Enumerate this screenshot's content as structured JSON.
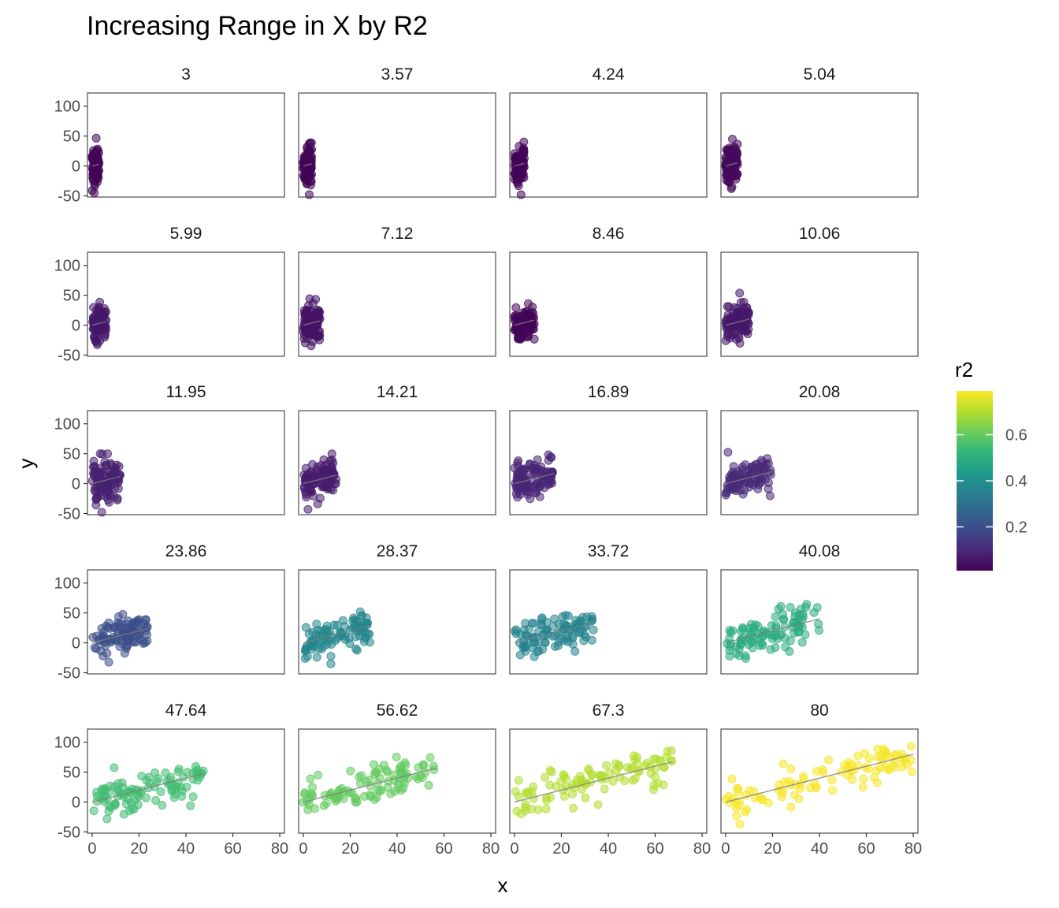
{
  "chart_data": {
    "type": "scatter",
    "title": "Increasing Range in X by R2",
    "xlabel": "x",
    "ylabel": "y",
    "xlim": [
      -2,
      82
    ],
    "ylim": [
      -52,
      122
    ],
    "x_ticks": [
      0,
      20,
      40,
      60,
      80
    ],
    "y_ticks": [
      -50,
      0,
      50,
      100
    ],
    "grid": false,
    "layout": "facet 5x4",
    "facets": [
      {
        "label": "3",
        "x_max": 3,
        "r2": 0.02
      },
      {
        "label": "3.57",
        "x_max": 3.57,
        "r2": 0.02
      },
      {
        "label": "4.24",
        "x_max": 4.24,
        "r2": 0.02
      },
      {
        "label": "5.04",
        "x_max": 5.04,
        "r2": 0.03
      },
      {
        "label": "5.99",
        "x_max": 5.99,
        "r2": 0.06
      },
      {
        "label": "7.12",
        "x_max": 7.12,
        "r2": 0.05
      },
      {
        "label": "8.46",
        "x_max": 8.46,
        "r2": 0.02
      },
      {
        "label": "10.06",
        "x_max": 10.06,
        "r2": 0.06
      },
      {
        "label": "11.95",
        "x_max": 11.95,
        "r2": 0.08
      },
      {
        "label": "14.21",
        "x_max": 14.21,
        "r2": 0.07
      },
      {
        "label": "16.89",
        "x_max": 16.89,
        "r2": 0.09
      },
      {
        "label": "20.08",
        "x_max": 20.08,
        "r2": 0.1
      },
      {
        "label": "23.86",
        "x_max": 23.86,
        "r2": 0.2
      },
      {
        "label": "28.37",
        "x_max": 28.37,
        "r2": 0.37
      },
      {
        "label": "33.72",
        "x_max": 33.72,
        "r2": 0.36
      },
      {
        "label": "40.08",
        "x_max": 40.08,
        "r2": 0.49
      },
      {
        "label": "47.64",
        "x_max": 47.64,
        "r2": 0.55
      },
      {
        "label": "56.62",
        "x_max": 56.62,
        "r2": 0.6
      },
      {
        "label": "67.3",
        "x_max": 67.3,
        "r2": 0.7
      },
      {
        "label": "80",
        "x_max": 80,
        "r2": 0.78
      }
    ],
    "point_model": {
      "points_per_panel": 100,
      "slope": 1,
      "intercept": 0,
      "noise_sd": 15
    },
    "legend": {
      "title": "r2",
      "ticks": [
        0.2,
        0.4,
        0.6
      ],
      "range": [
        0.01,
        0.79
      ],
      "placement": "right"
    },
    "colors": {
      "viridis": [
        "#440154",
        "#482878",
        "#3e4989",
        "#31688e",
        "#26828e",
        "#1f9e89",
        "#35b779",
        "#6ece58",
        "#b5de2b",
        "#fde725"
      ],
      "panel_border": "#4d4d4d",
      "fit_line": "#7f7f7f"
    }
  }
}
